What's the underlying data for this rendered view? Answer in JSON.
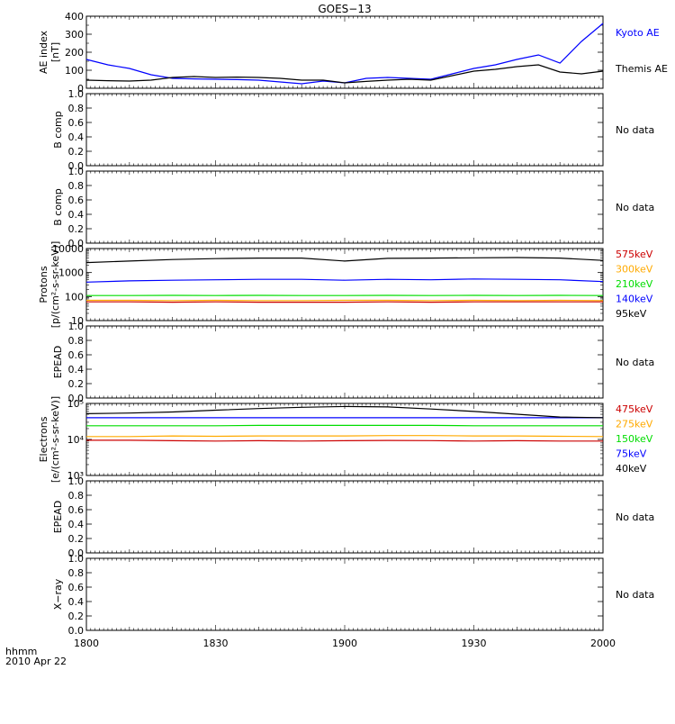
{
  "title": "GOES−13",
  "time_axis": {
    "tick_labels": [
      "1800",
      "1830",
      "1900",
      "1930",
      "2000"
    ],
    "caption_line1": "hhmm",
    "caption_line2": "2010 Apr 22"
  },
  "no_data_text": "No data",
  "colors": {
    "black": "#000000",
    "blue": "#0000ff",
    "green": "#00dd00",
    "orange": "#ffaa00",
    "red": "#cc0000"
  },
  "chart_data": [
    {
      "id": "ae",
      "type": "line",
      "ylabel": "AE index",
      "ylabel2": "[nT]",
      "scale": "linear",
      "ylim": [
        0,
        400
      ],
      "yticks": [
        "0",
        "100",
        "200",
        "300",
        "400"
      ],
      "minor_ticks": [
        50,
        150,
        250,
        350
      ],
      "x": [
        1800,
        1805,
        1810,
        1815,
        1820,
        1825,
        1830,
        1835,
        1840,
        1845,
        1850,
        1855,
        1900,
        1905,
        1910,
        1915,
        1920,
        1925,
        1930,
        1935,
        1940,
        1945,
        1950,
        1955,
        2000
      ],
      "series": [
        {
          "name": "Kyoto AE",
          "color": "#0000ff",
          "values": [
            160,
            130,
            110,
            75,
            55,
            52,
            50,
            48,
            45,
            35,
            25,
            40,
            30,
            55,
            60,
            55,
            50,
            80,
            110,
            130,
            160,
            185,
            140,
            260,
            360
          ]
        },
        {
          "name": "Themis AE",
          "color": "#000000",
          "values": [
            45,
            42,
            40,
            45,
            60,
            65,
            60,
            62,
            60,
            55,
            45,
            45,
            30,
            38,
            45,
            50,
            45,
            70,
            95,
            105,
            120,
            130,
            90,
            80,
            95
          ]
        }
      ],
      "no_data": false
    },
    {
      "id": "bcomp1",
      "type": "line",
      "ylabel": "B comp",
      "scale": "linear",
      "ylim": [
        0,
        1
      ],
      "yticks": [
        "0.0",
        "0.2",
        "0.4",
        "0.6",
        "0.8",
        "1.0"
      ],
      "minor_ticks": [],
      "series": [],
      "no_data": true
    },
    {
      "id": "bcomp2",
      "type": "line",
      "ylabel": "B comp",
      "scale": "linear",
      "ylim": [
        0,
        1
      ],
      "yticks": [
        "0.0",
        "0.2",
        "0.4",
        "0.6",
        "0.8",
        "1.0"
      ],
      "minor_ticks": [],
      "series": [],
      "no_data": true
    },
    {
      "id": "protons",
      "type": "line",
      "ylabel": "Protons",
      "ylabel2": "[p/(cm²-s-sr-keV)]",
      "scale": "log",
      "ylim": [
        10,
        10000
      ],
      "yticks": [
        "10",
        "100",
        "1000",
        "10000"
      ],
      "x": [
        1800,
        1810,
        1820,
        1830,
        1840,
        1850,
        1900,
        1910,
        1920,
        1930,
        1940,
        1950,
        2000
      ],
      "series": [
        {
          "name": "575keV",
          "color": "#cc0000",
          "values": [
            60,
            60,
            58,
            60,
            58,
            58,
            58,
            60,
            58,
            60,
            60,
            60,
            60
          ]
        },
        {
          "name": "300keV",
          "color": "#ffaa00",
          "values": [
            70,
            70,
            68,
            70,
            68,
            68,
            70,
            70,
            68,
            70,
            68,
            70,
            68
          ]
        },
        {
          "name": "210keV",
          "color": "#00dd00",
          "values": [
            110,
            110,
            112,
            110,
            112,
            110,
            110,
            112,
            110,
            112,
            110,
            112,
            110
          ]
        },
        {
          "name": "140keV",
          "color": "#0000ff",
          "values": [
            400,
            450,
            480,
            500,
            520,
            520,
            480,
            520,
            500,
            540,
            520,
            500,
            420
          ]
        },
        {
          "name": "95keV",
          "color": "#000000",
          "values": [
            2600,
            3000,
            3500,
            3800,
            4000,
            4000,
            3000,
            3900,
            4000,
            4100,
            4200,
            4000,
            3200
          ]
        }
      ],
      "no_data": false
    },
    {
      "id": "epead1",
      "type": "line",
      "ylabel": "EPEAD",
      "scale": "linear",
      "ylim": [
        0,
        1
      ],
      "yticks": [
        "0.0",
        "0.2",
        "0.4",
        "0.6",
        "0.8",
        "1.0"
      ],
      "minor_ticks": [],
      "series": [],
      "no_data": true
    },
    {
      "id": "electrons",
      "type": "line",
      "ylabel": "Electrons",
      "ylabel2": "[e/(cm²-s-sr-keV)]",
      "scale": "log",
      "ylim": [
        1000,
        100000
      ],
      "yticks": [
        "10³",
        "10⁴",
        "10⁵"
      ],
      "x": [
        1800,
        1810,
        1820,
        1830,
        1840,
        1850,
        1900,
        1910,
        1920,
        1930,
        1940,
        1950,
        2000
      ],
      "series": [
        {
          "name": "475keV",
          "color": "#cc0000",
          "values": [
            9500,
            9500,
            9200,
            9000,
            9200,
            9000,
            9200,
            9400,
            9300,
            9000,
            9200,
            9000,
            9000
          ]
        },
        {
          "name": "275keV",
          "color": "#ffaa00",
          "values": [
            12000,
            12000,
            12500,
            12200,
            12500,
            12500,
            12500,
            12800,
            12800,
            12500,
            12500,
            12200,
            12000
          ]
        },
        {
          "name": "150keV",
          "color": "#00dd00",
          "values": [
            24000,
            24000,
            24000,
            24000,
            24500,
            24500,
            24500,
            24500,
            24500,
            24000,
            24000,
            24000,
            24000
          ]
        },
        {
          "name": "75keV",
          "color": "#0000ff",
          "values": [
            40000,
            40000,
            40000,
            40000,
            40000,
            40000,
            40000,
            40000,
            40000,
            40000,
            40000,
            40000,
            40000
          ]
        },
        {
          "name": "40keV",
          "color": "#000000",
          "values": [
            52000,
            54000,
            58000,
            65000,
            72000,
            78000,
            82000,
            80000,
            70000,
            60000,
            50000,
            42000,
            40000
          ]
        }
      ],
      "no_data": false
    },
    {
      "id": "epead2",
      "type": "line",
      "ylabel": "EPEAD",
      "scale": "linear",
      "ylim": [
        0,
        1
      ],
      "yticks": [
        "0.0",
        "0.2",
        "0.4",
        "0.6",
        "0.8",
        "1.0"
      ],
      "minor_ticks": [],
      "series": [],
      "no_data": true
    },
    {
      "id": "xray",
      "type": "line",
      "ylabel": "X−ray",
      "scale": "linear",
      "ylim": [
        0,
        1
      ],
      "yticks": [
        "0.0",
        "0.2",
        "0.4",
        "0.6",
        "0.8",
        "1.0"
      ],
      "minor_ticks": [],
      "series": [],
      "no_data": true
    }
  ]
}
